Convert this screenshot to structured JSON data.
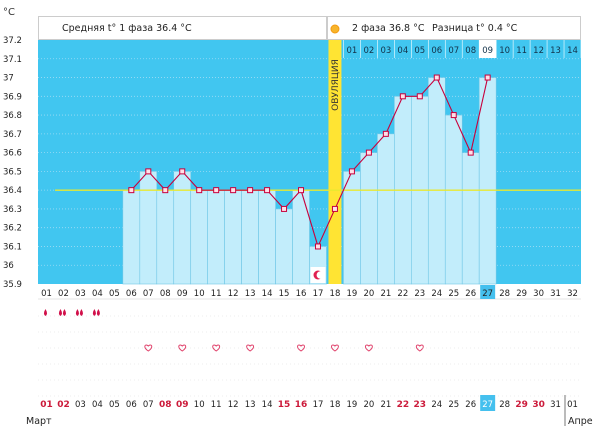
{
  "header": {
    "unit": "°C",
    "phase1": "Средняя t° 1 фаза 36.4 °C",
    "phase2": "2 фаза 36.8 °C",
    "diff": "Разница t° 0.4 °C"
  },
  "ovulation": {
    "label": "ОВУЛЯЦИЯ",
    "icon": "sun-icon",
    "day_index": 17
  },
  "chart_data": {
    "type": "line",
    "ylim": [
      35.9,
      37.2
    ],
    "y_ticks": [
      "37.2",
      "37.1",
      "37",
      "36.9",
      "36.8",
      "36.7",
      "36.6",
      "36.5",
      "36.4",
      "36.3",
      "36.2",
      "36.1",
      "36",
      "35.9"
    ],
    "x": [
      "01",
      "02",
      "03",
      "04",
      "05",
      "06",
      "07",
      "08",
      "09",
      "10",
      "11",
      "12",
      "13",
      "14",
      "15",
      "16",
      "17",
      "18",
      "19",
      "20",
      "21",
      "22",
      "23",
      "24",
      "25",
      "26",
      "27",
      "28",
      "29",
      "30",
      "31",
      "32"
    ],
    "series": [
      {
        "values": [
          null,
          null,
          null,
          null,
          null,
          36.4,
          36.5,
          36.4,
          36.5,
          36.4,
          36.4,
          36.4,
          36.4,
          36.4,
          36.3,
          36.4,
          36.1,
          36.3,
          36.5,
          36.6,
          36.7,
          36.9,
          36.9,
          37.0,
          36.8,
          36.6,
          37.0,
          null,
          null,
          null,
          null,
          null
        ]
      }
    ],
    "cover_line": 36.4,
    "phase2_days": [
      "01",
      "02",
      "03",
      "04",
      "05",
      "06",
      "07",
      "08",
      "09",
      "10",
      "11",
      "12",
      "13",
      "14"
    ],
    "phase2_highlight": "09",
    "current_day": "27"
  },
  "symbols": {
    "drop_days": [
      1,
      2,
      3,
      4
    ],
    "drop_sizes": [
      1,
      2,
      2,
      2
    ],
    "heart_days": [
      7,
      9,
      11,
      13,
      16,
      18,
      20,
      23
    ],
    "moon_day": 17
  },
  "calendar": {
    "dates": [
      "01",
      "02",
      "03",
      "04",
      "05",
      "06",
      "07",
      "08",
      "09",
      "10",
      "11",
      "12",
      "13",
      "14",
      "15",
      "16",
      "17",
      "18",
      "19",
      "20",
      "21",
      "22",
      "23",
      "24",
      "25",
      "26",
      "27",
      "28",
      "29",
      "30",
      "31",
      "01"
    ],
    "red_indices": [
      0,
      1,
      7,
      8,
      14,
      15,
      21,
      22,
      28,
      29
    ],
    "month_start": "Март",
    "month_end": "Апрел",
    "today_index": 26
  },
  "colors": {
    "sky": "#41c6f0",
    "bar": "#c2edfb",
    "bar_stroke": "#70c7e6",
    "line": "#c8003c",
    "marker_fill": "#ffe0e8",
    "cover": "#e8e830",
    "ovulation": "#ffe433",
    "red_text": "#cc1a3a",
    "today": "#45c0ee"
  }
}
